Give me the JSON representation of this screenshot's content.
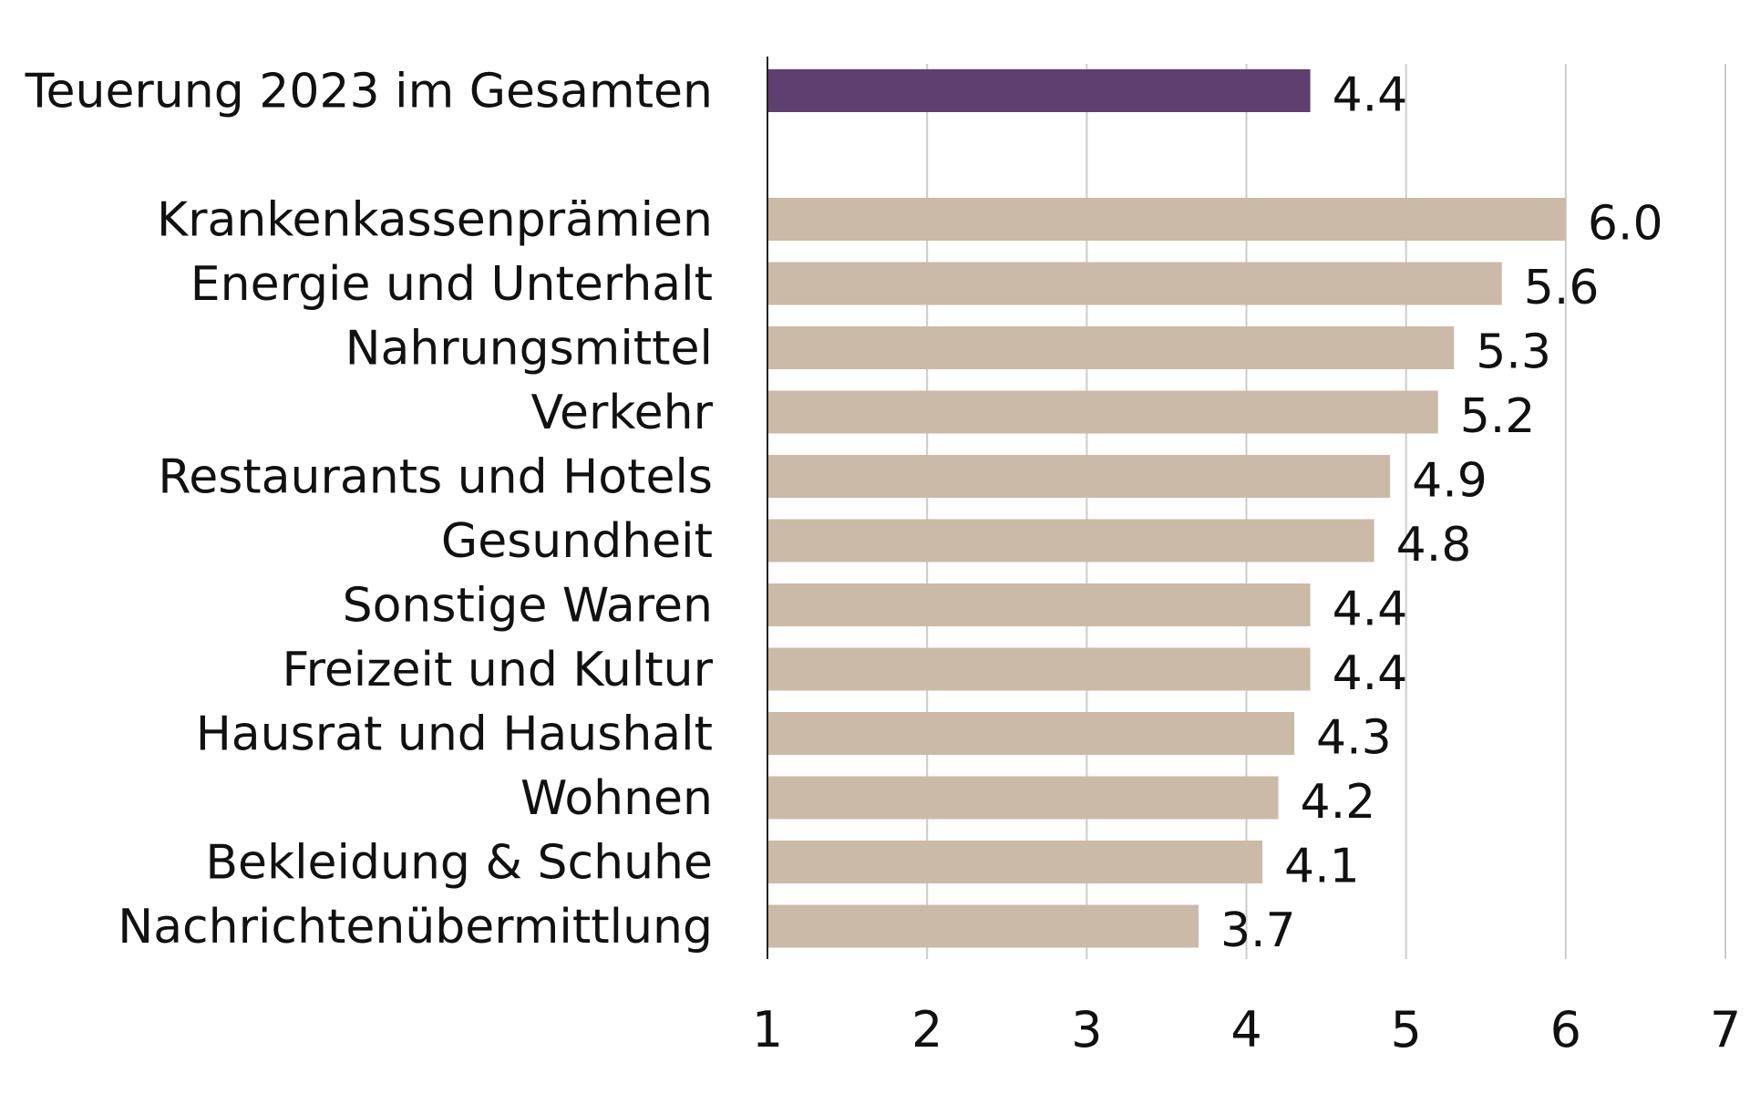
{
  "chart_data": {
    "type": "bar",
    "orientation": "horizontal",
    "categories": [
      "Teuerung 2023 im Gesamten",
      "Krankenkassenprämien",
      "Energie und Unterhalt",
      "Nahrungsmittel",
      "Verkehr",
      "Restaurants und Hotels",
      "Gesundheit",
      "Sonstige Waren",
      "Freizeit und Kultur",
      "Hausrat und Haushalt",
      "Wohnen",
      "Bekleidung & Schuhe",
      "Nachrichtenübermittlung"
    ],
    "values": [
      4.4,
      6.0,
      5.6,
      5.3,
      5.2,
      4.9,
      4.8,
      4.4,
      4.4,
      4.3,
      4.2,
      4.1,
      3.7
    ],
    "value_labels": [
      "4.4",
      "6.0",
      "5.6",
      "5.3",
      "5.2",
      "4.9",
      "4.8",
      "4.4",
      "4.4",
      "4.3",
      "4.2",
      "4.1",
      "3.7"
    ],
    "highlight_index": 0,
    "colors": {
      "highlight": "#5f3f6f",
      "default": "#cbbaa8",
      "grid": "#cccccc",
      "axis": "#222222"
    },
    "xlim": [
      1,
      7
    ],
    "xticks": [
      "1",
      "2",
      "3",
      "4",
      "5",
      "6",
      "7"
    ],
    "grid": true,
    "title": "",
    "xlabel": "",
    "ylabel": ""
  }
}
